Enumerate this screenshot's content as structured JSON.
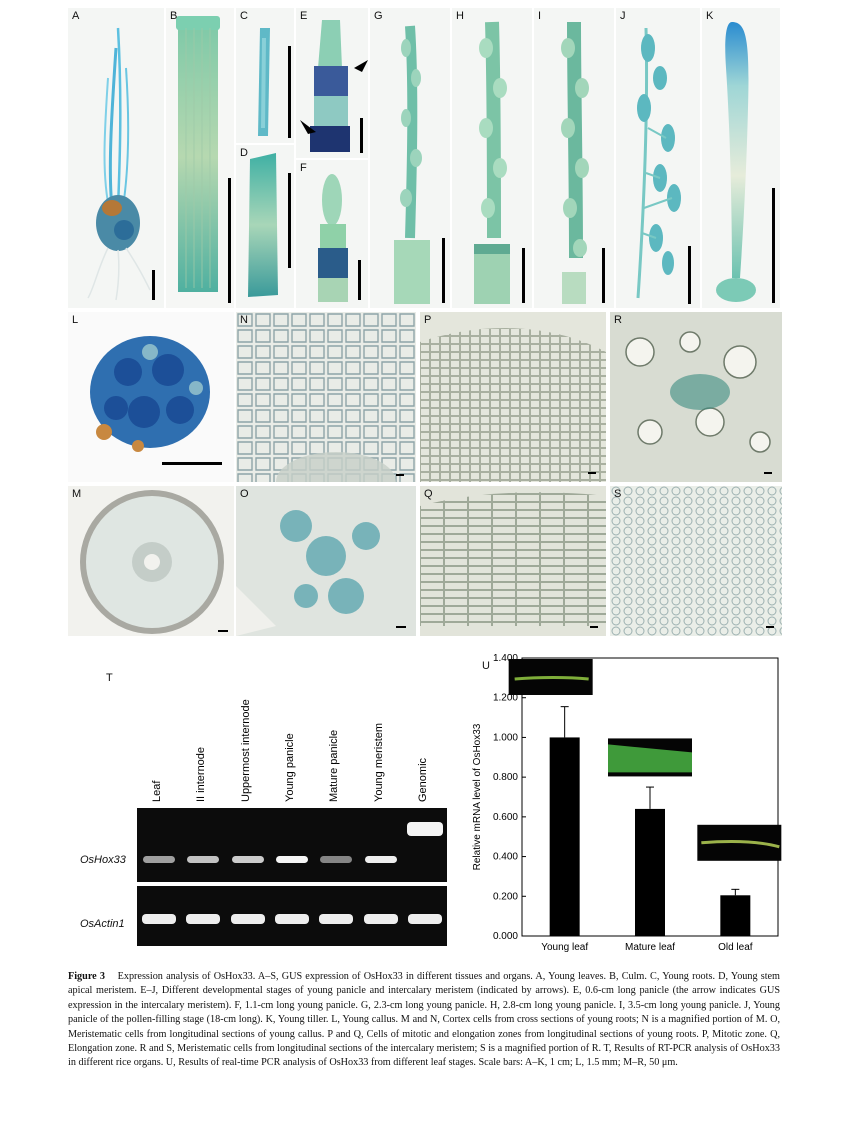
{
  "panels": {
    "A": "A",
    "B": "B",
    "C": "C",
    "D": "D",
    "E": "E",
    "F": "F",
    "G": "G",
    "H": "H",
    "I": "I",
    "J": "J",
    "K": "K",
    "L": "L",
    "M": "M",
    "N": "N",
    "O": "O",
    "P": "P",
    "Q": "Q",
    "R": "R",
    "S": "S",
    "T": "T",
    "U": "U"
  },
  "gel": {
    "lanes": [
      "Leaf",
      "II internode",
      "Uppermost internode",
      "Young panicle",
      "Mature panicle",
      "Young meristem",
      "Genomic"
    ],
    "genes": [
      "OsHox33",
      "OsActin1"
    ],
    "intensity_oshox33": [
      0.45,
      0.65,
      0.7,
      0.95,
      0.3,
      0.9,
      0
    ],
    "intensity_actin": [
      0.9,
      0.9,
      0.9,
      0.9,
      0.9,
      0.9,
      0.9
    ]
  },
  "chart_data": {
    "type": "bar",
    "categories": [
      "Young leaf",
      "Mature leaf",
      "Old leaf"
    ],
    "values": [
      1.0,
      0.64,
      0.205
    ],
    "errors": [
      0.155,
      0.11,
      0.03
    ],
    "ylabel": "Relative mRNA level of OsHox33",
    "ylim": [
      0,
      1.4
    ],
    "yticks": [
      "0.000",
      "0.200",
      "0.400",
      "0.600",
      "0.800",
      "1.000",
      "1.200",
      "1.400"
    ],
    "bar_color": "#000000"
  },
  "caption": {
    "figure_label": "Figure 3",
    "text": "Expression analysis of OsHox33. A–S, GUS expression of OsHox33 in different tissues and organs. A, Young leaves. B, Culm. C, Young roots. D, Young stem apical meristem. E–J, Different developmental stages of young panicle and intercalary meristem (indicated by arrows). E, 0.6-cm long panicle (the arrow indicates GUS expression in the intercalary meristem). F, 1.1-cm long young panicle. G, 2.3-cm long young panicle. H, 2.8-cm long young panicle. I, 3.5-cm long young panicle. J, Young panicle of the pollen-filling stage (18-cm long). K, Young tiller. L, Young callus. M and N, Cortex cells from cross sections of young roots; N is a magnified portion of M. O, Meristematic cells from longitudinal sections of young callus. P and Q, Cells of mitotic and elongation zones from longitudinal sections of young roots. P, Mitotic zone. Q, Elongation zone. R and S, Meristematic cells from longitudinal sections of the intercalary meristem; S is a magnified portion of R. T, Results of RT-PCR analysis of OsHox33 in different rice organs. U, Results of real-time PCR analysis of OsHox33 from different leaf stages. Scale bars: A–K, 1 cm; L, 1.5 mm; M–R, 50 μm."
  }
}
